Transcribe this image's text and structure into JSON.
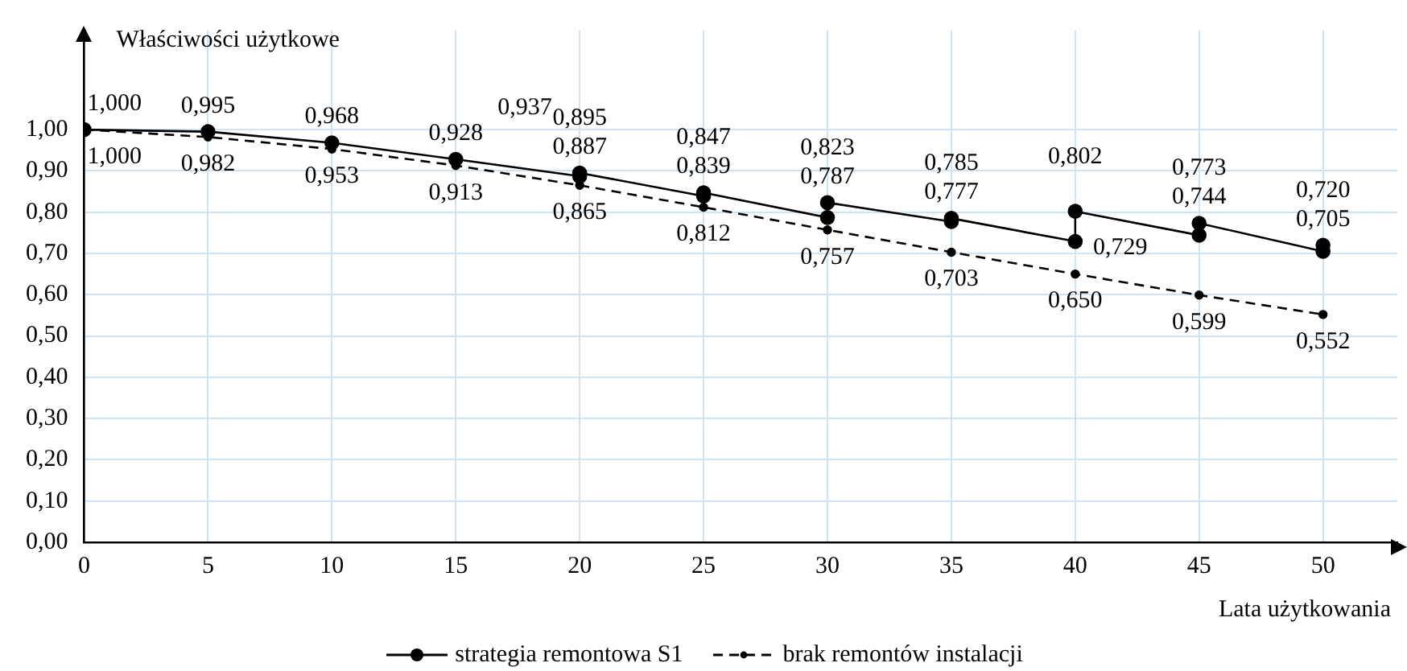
{
  "chart_data": {
    "type": "line",
    "xlabel": "Lata użytkowania",
    "ylabel": "Właściwości użytkowe",
    "xlim": [
      0,
      53
    ],
    "xticks": [
      0,
      5,
      10,
      15,
      20,
      25,
      30,
      35,
      40,
      45,
      50
    ],
    "ylim": [
      0,
      1.24
    ],
    "yticks": [
      {
        "value": 0,
        "label": "0,00"
      },
      {
        "value": 0.1,
        "label": "0,10"
      },
      {
        "value": 0.2,
        "label": "0,20"
      },
      {
        "value": 0.3,
        "label": "0,30"
      },
      {
        "value": 0.4,
        "label": "0,40"
      },
      {
        "value": 0.5,
        "label": "0,50"
      },
      {
        "value": 0.6,
        "label": "0,60"
      },
      {
        "value": 0.7,
        "label": "0,70"
      },
      {
        "value": 0.8,
        "label": "0,80"
      },
      {
        "value": 0.9,
        "label": "0,90"
      },
      {
        "value": 1,
        "label": "1,00"
      }
    ],
    "grid": true,
    "legend": "bottom",
    "series": [
      {
        "name": "strategia remontowa S1",
        "color": "#000000",
        "marker": "circle",
        "line_style": "solid",
        "x": [
          0,
          5,
          10,
          15,
          20,
          20,
          25,
          25,
          30,
          30,
          35,
          35,
          40,
          40,
          45,
          45,
          50,
          50
        ],
        "values": [
          1.0,
          0.995,
          0.968,
          0.928,
          0.887,
          0.895,
          0.839,
          0.847,
          0.787,
          0.823,
          0.777,
          0.785,
          0.729,
          0.802,
          0.744,
          0.773,
          0.705,
          0.72
        ],
        "value_labels": [
          "1,000",
          "0,995",
          "0,968",
          "0,928",
          "0,887",
          "0,895",
          "0,839",
          "0,847",
          "0,787",
          "0,823",
          "0,777",
          "0,785",
          "0,729",
          "0,802",
          "0,744",
          "0,773",
          "0,705",
          "0,720"
        ]
      },
      {
        "name": "brak remontów instalacji",
        "color": "#000000",
        "marker": "circle",
        "line_style": "dashed",
        "x": [
          0,
          5,
          10,
          15,
          20,
          25,
          30,
          35,
          40,
          45,
          50
        ],
        "values": [
          1.0,
          0.982,
          0.953,
          0.913,
          0.865,
          0.812,
          0.757,
          0.703,
          0.65,
          0.599,
          0.552
        ],
        "value_labels": [
          "1,000",
          "0,982",
          "0,953",
          "0,913",
          "0,865",
          "0,812",
          "0,757",
          "0,703",
          "0,650",
          "0,599",
          "0,552"
        ]
      }
    ],
    "annotations": [
      "0,937"
    ]
  }
}
